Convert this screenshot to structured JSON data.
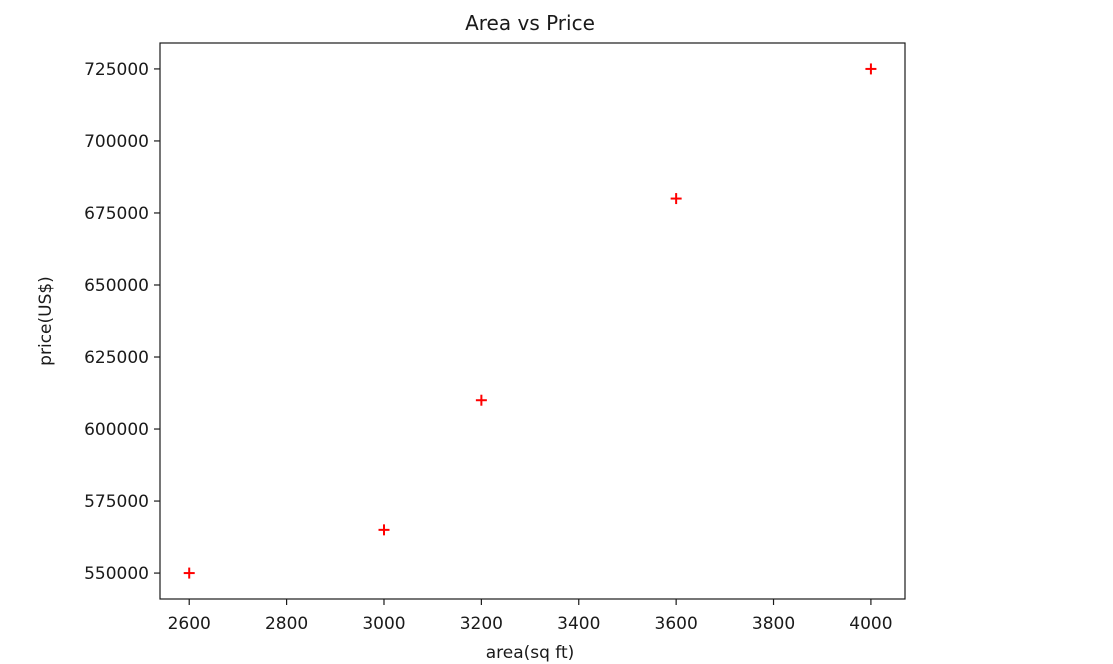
{
  "chart_data": {
    "type": "scatter",
    "title": "Area vs Price",
    "xlabel": "area(sq ft)",
    "ylabel": "price(US$)",
    "xlim": [
      2540,
      4070
    ],
    "ylim": [
      541000,
      734000
    ],
    "x_ticks": [
      2600,
      2800,
      3000,
      3200,
      3400,
      3600,
      3800,
      4000
    ],
    "y_ticks": [
      550000,
      575000,
      600000,
      625000,
      650000,
      675000,
      700000,
      725000
    ],
    "grid": false,
    "marker": "+",
    "marker_color": "#ff0000",
    "series": [
      {
        "x": [
          2600,
          3000,
          3200,
          3600,
          4000
        ],
        "y": [
          550000,
          565000,
          610000,
          680000,
          725000
        ]
      }
    ]
  }
}
